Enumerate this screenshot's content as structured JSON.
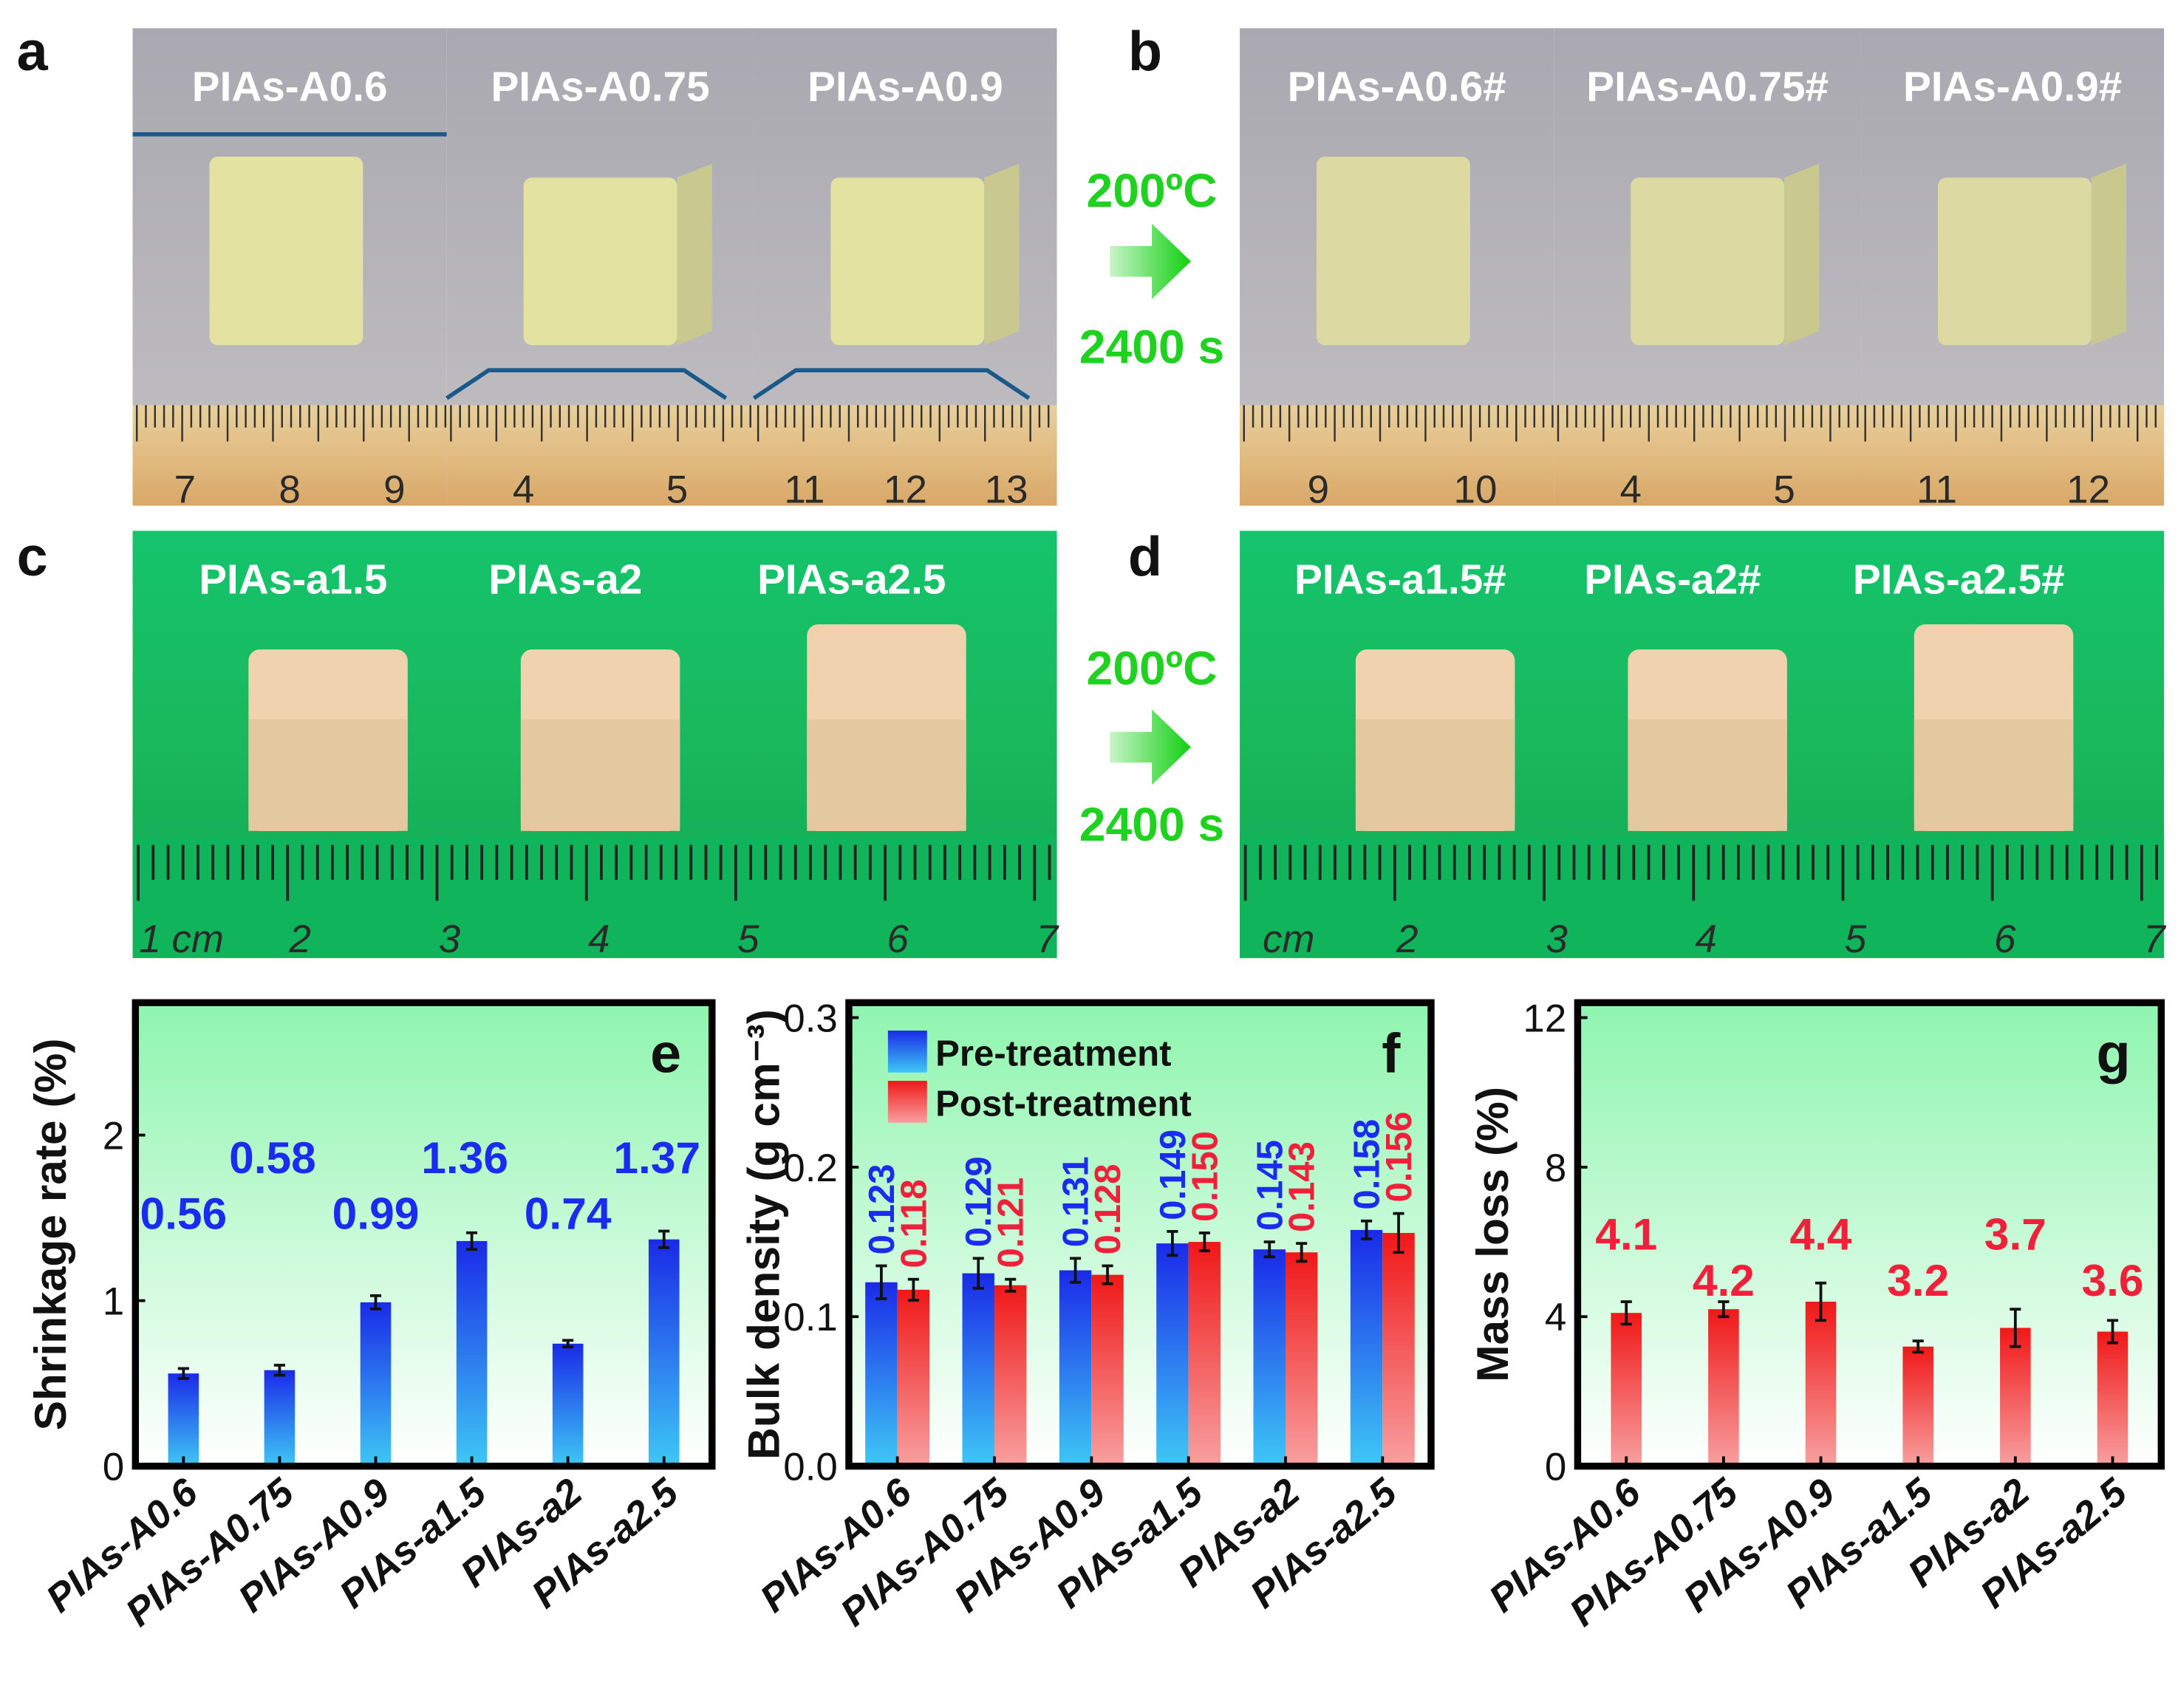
{
  "panels": {
    "a": {
      "label": "a",
      "titles": [
        "PIAs-A0.6",
        "PIAs-A0.75",
        "PIAs-A0.9"
      ],
      "ruler_numbers": [
        [
          "7",
          "8",
          "9"
        ],
        [
          "4",
          "5"
        ],
        [
          "11",
          "12",
          "13"
        ]
      ]
    },
    "b": {
      "label": "b",
      "titles": [
        "PIAs-A0.6#",
        "PIAs-A0.75#",
        "PIAs-A0.9#"
      ],
      "ruler_numbers": [
        [
          "9",
          "10"
        ],
        [
          "4",
          "5"
        ],
        [
          "11",
          "12"
        ]
      ]
    },
    "c": {
      "label": "c",
      "titles": [
        "PIAs-a1.5",
        "PIAs-a2",
        "PIAs-a2.5"
      ],
      "ruler_numbers": [
        "1 cm",
        "2",
        "3",
        "4",
        "5",
        "6",
        "7"
      ]
    },
    "d": {
      "label": "d",
      "titles": [
        "PIAs-a1.5#",
        "PIAs-a2#",
        "PIAs-a2.5#"
      ],
      "ruler_numbers": [
        "cm",
        "2",
        "3",
        "4",
        "5",
        "6",
        "7"
      ]
    }
  },
  "treatment": {
    "temperature": "200ºC",
    "time": "2400 s"
  },
  "colors": {
    "pre": "#1a3cf0",
    "post": "#f02030",
    "text_pre": "#1a2cf0",
    "text_post": "#f0203a",
    "photo_green": "#17c46a"
  },
  "chart_data": [
    {
      "type": "bar",
      "panel_label": "e",
      "title": "",
      "xlabel": "",
      "ylabel": "Shrinkage rate (%)",
      "categories": [
        "PIAs-A0.6",
        "PIAs-A0.75",
        "PIAs-A0.9",
        "PIAs-a1.5",
        "PIAs-a2",
        "PIAs-a2.5"
      ],
      "ylim": [
        0,
        2.8
      ],
      "yticks": [
        "0",
        "1",
        "2"
      ],
      "ytick_values": [
        0,
        1,
        2
      ],
      "series": [
        {
          "name": "Shrinkage rate",
          "values": [
            0.56,
            0.58,
            0.99,
            1.36,
            0.74,
            1.37
          ],
          "errors": [
            0.03,
            0.03,
            0.04,
            0.05,
            0.02,
            0.05
          ],
          "labels": [
            "0.56",
            "0.58",
            "0.99",
            "1.36",
            "0.74",
            "1.37"
          ]
        }
      ]
    },
    {
      "type": "bar",
      "panel_label": "f",
      "title": "",
      "xlabel": "",
      "ylabel": "Bulk density (g cm⁻³)",
      "categories": [
        "PIAs-A0.6",
        "PIAs-A0.75",
        "PIAs-A0.9",
        "PIAs-a1.5",
        "PIAs-a2",
        "PIAs-a2.5"
      ],
      "ylim": [
        0,
        0.31
      ],
      "yticks": [
        "0.0",
        "0.1",
        "0.2",
        "0.3"
      ],
      "ytick_values": [
        0,
        0.1,
        0.2,
        0.3
      ],
      "legend": "top-left",
      "series": [
        {
          "name": "Pre-treatment",
          "values": [
            0.123,
            0.129,
            0.131,
            0.149,
            0.145,
            0.158
          ],
          "errors": [
            0.011,
            0.01,
            0.008,
            0.008,
            0.005,
            0.006
          ],
          "labels": [
            "0.123",
            "0.129",
            "0.131",
            "0.149",
            "0.145",
            "0.158"
          ]
        },
        {
          "name": "Post-treatment",
          "values": [
            0.118,
            0.121,
            0.128,
            0.15,
            0.143,
            0.156
          ],
          "errors": [
            0.007,
            0.004,
            0.006,
            0.006,
            0.006,
            0.013
          ],
          "labels": [
            "0.118",
            "0.121",
            "0.128",
            "0.150",
            "0.143",
            "0.156"
          ]
        }
      ]
    },
    {
      "type": "bar",
      "panel_label": "g",
      "title": "",
      "xlabel": "",
      "ylabel": "Mass loss (%)",
      "categories": [
        "PIAs-A0.6",
        "PIAs-A0.75",
        "PIAs-A0.9",
        "PIAs-a1.5",
        "PIAs-a2",
        "PIAs-a2.5"
      ],
      "ylim": [
        0,
        12.4
      ],
      "yticks": [
        "0",
        "4",
        "8",
        "12"
      ],
      "ytick_values": [
        0,
        4,
        8,
        12
      ],
      "series": [
        {
          "name": "Mass loss",
          "values": [
            4.1,
            4.2,
            4.4,
            3.2,
            3.7,
            3.6
          ],
          "errors": [
            0.3,
            0.2,
            0.5,
            0.15,
            0.5,
            0.3
          ],
          "labels": [
            "4.1",
            "4.2",
            "4.4",
            "3.2",
            "3.7",
            "3.6"
          ]
        }
      ]
    }
  ]
}
